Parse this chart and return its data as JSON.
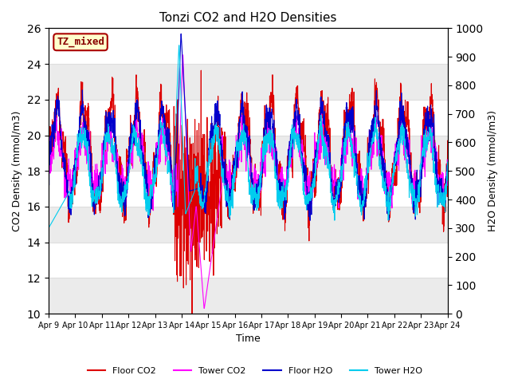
{
  "title": "Tonzi CO2 and H2O Densities",
  "xlabel": "Time",
  "ylabel_left": "CO2 Density (mmol/m3)",
  "ylabel_right": "H2O Density (mmol/m3)",
  "annotation_text": "TZ_mixed",
  "annotation_color": "#880000",
  "annotation_bg": "#ffffcc",
  "annotation_border": "#aa0000",
  "ylim_left": [
    10,
    26
  ],
  "ylim_right": [
    0,
    1000
  ],
  "yticks_left": [
    10,
    12,
    14,
    16,
    18,
    20,
    22,
    24,
    26
  ],
  "yticks_right": [
    0,
    100,
    200,
    300,
    400,
    500,
    600,
    700,
    800,
    900,
    1000
  ],
  "colors": {
    "floor_co2": "#dd0000",
    "tower_co2": "#ff00ff",
    "floor_h2o": "#0000cc",
    "tower_h2o": "#00ccee"
  },
  "legend_labels": [
    "Floor CO2",
    "Tower CO2",
    "Floor H2O",
    "Tower H2O"
  ],
  "bg_color": "#ffffff",
  "n_points": 2000,
  "xtick_labels": [
    "Apr 9",
    "Apr 10",
    "Apr 11",
    "Apr 12",
    "Apr 13",
    "Apr 14",
    "Apr 15",
    "Apr 16",
    "Apr 17",
    "Apr 18",
    "Apr 19",
    "Apr 20",
    "Apr 21",
    "Apr 22",
    "Apr 23",
    "Apr 24"
  ],
  "lw": 0.8
}
